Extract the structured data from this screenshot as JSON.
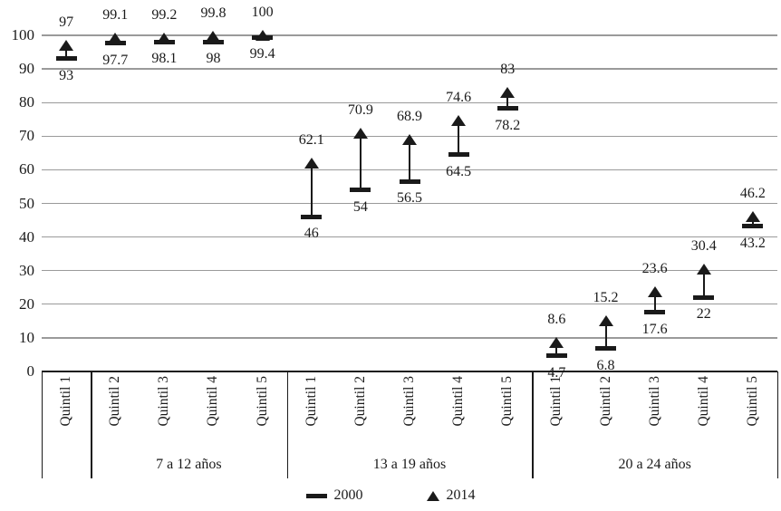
{
  "chart_data": {
    "type": "scatter",
    "subtype": "dumbbell-comparison",
    "title": "",
    "xlabel": "",
    "ylabel": "",
    "ylim": [
      0,
      100
    ],
    "y_ticks": [
      0,
      10,
      20,
      30,
      40,
      50,
      60,
      70,
      80,
      90,
      100
    ],
    "grid": "horizontal",
    "legend_position": "bottom",
    "series_names": [
      "2000",
      "2014"
    ],
    "groups": [
      {
        "label": "7 a 12 años",
        "categories": [
          "Quintil 1",
          "Quintil 2",
          "Quintil 3",
          "Quintil 4",
          "Quintil 5"
        ],
        "series": [
          {
            "name": "2000",
            "values": [
              93,
              97.7,
              98.1,
              98,
              99.4
            ]
          },
          {
            "name": "2014",
            "values": [
              97,
              99.1,
              99.2,
              99.8,
              100
            ]
          }
        ]
      },
      {
        "label": "13 a 19 años",
        "categories": [
          "Quintil 1",
          "Quintil 2",
          "Quintil 3",
          "Quintil 4",
          "Quintil 5"
        ],
        "series": [
          {
            "name": "2000",
            "values": [
              46,
              54,
              56.5,
              64.5,
              78.2
            ]
          },
          {
            "name": "2014",
            "values": [
              62.1,
              70.9,
              68.9,
              74.6,
              83
            ]
          }
        ]
      },
      {
        "label": "20 a 24 años",
        "categories": [
          "Quintil 1",
          "Quintil 2",
          "Quintil 3",
          "Quintil 4",
          "Quintil 5"
        ],
        "series": [
          {
            "name": "2000",
            "values": [
              4.7,
              6.8,
              17.6,
              22,
              43.2
            ]
          },
          {
            "name": "2014",
            "values": [
              8.6,
              15.2,
              23.6,
              30.4,
              46.2
            ]
          }
        ]
      }
    ]
  },
  "legend": {
    "items": [
      {
        "label": "2000",
        "marker": "dash-icon"
      },
      {
        "label": "2014",
        "marker": "triangle-icon"
      }
    ]
  },
  "colors": {
    "ink": "#1a1a1a",
    "gridline": "#9a9a9a",
    "background": "#ffffff"
  }
}
